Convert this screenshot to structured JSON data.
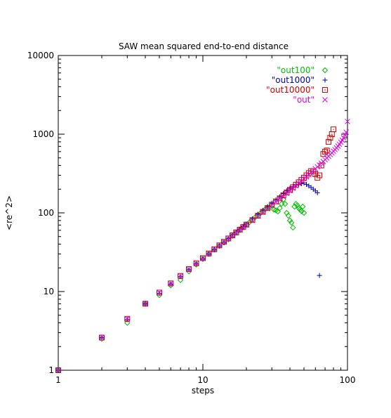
{
  "chart_data": {
    "type": "scatter",
    "title": "SAW mean squared end-to-end distance",
    "xlabel": "steps",
    "ylabel": "<re^2>",
    "x_scale": "log",
    "y_scale": "log",
    "xlim": [
      1,
      100
    ],
    "ylim": [
      1,
      10000
    ],
    "grid": false,
    "legend_position": "top-right",
    "x_ticks": [
      {
        "value": 1,
        "label": "1"
      },
      {
        "value": 10,
        "label": "10"
      },
      {
        "value": 100,
        "label": "100"
      }
    ],
    "y_ticks": [
      {
        "value": 1,
        "label": "1"
      },
      {
        "value": 10,
        "label": "10"
      },
      {
        "value": 100,
        "label": "100"
      },
      {
        "value": 1000,
        "label": "1000"
      },
      {
        "value": 10000,
        "label": "10000"
      }
    ],
    "series": [
      {
        "name": "\"out100\"",
        "color": "#00c000",
        "marker": "diamond",
        "x": [
          1,
          2,
          3,
          4,
          5,
          6,
          7,
          8,
          9,
          10,
          11,
          12,
          13,
          14,
          15,
          16,
          17,
          18,
          19,
          20,
          21,
          22,
          23,
          24,
          25,
          26,
          27,
          28,
          29,
          30,
          31,
          32,
          33,
          34,
          35,
          36,
          37,
          38,
          39,
          40,
          41,
          42,
          43,
          44,
          45,
          46,
          47,
          48,
          49,
          50
        ],
        "y": [
          1,
          2.5,
          4,
          7,
          9,
          12,
          14,
          18,
          22,
          26,
          30,
          34,
          38,
          42,
          46,
          51,
          56,
          61,
          66,
          71,
          76,
          82,
          88,
          94,
          99,
          105,
          111,
          117,
          118,
          125,
          110,
          108,
          104,
          115,
          130,
          148,
          130,
          100,
          92,
          80,
          75,
          65,
          120,
          130,
          125,
          115,
          110,
          105,
          120,
          100
        ]
      },
      {
        "name": "\"out1000\"",
        "color": "#0000b0",
        "marker": "plus",
        "x": [
          1,
          2,
          3,
          4,
          5,
          6,
          7,
          8,
          9,
          10,
          11,
          12,
          13,
          14,
          15,
          16,
          17,
          18,
          19,
          20,
          22,
          24,
          26,
          28,
          30,
          32,
          34,
          36,
          38,
          40,
          42,
          44,
          46,
          48,
          50,
          52,
          54,
          56,
          58,
          60,
          62,
          64
        ],
        "y": [
          1,
          2.6,
          4.4,
          7,
          9.5,
          12.5,
          15.5,
          19,
          22.5,
          26,
          30,
          34,
          38,
          42,
          47,
          52,
          57,
          62,
          67,
          72,
          84,
          96,
          108,
          120,
          133,
          146,
          160,
          176,
          190,
          205,
          215,
          225,
          230,
          235,
          240,
          230,
          220,
          210,
          200,
          190,
          180,
          16
        ]
      },
      {
        "name": "\"out10000\"",
        "color": "#d00000",
        "marker": "square",
        "x": [
          1,
          2,
          3,
          4,
          5,
          6,
          7,
          8,
          9,
          10,
          11,
          12,
          13,
          14,
          15,
          16,
          17,
          18,
          19,
          20,
          22,
          24,
          26,
          28,
          30,
          32,
          34,
          36,
          38,
          40,
          42,
          44,
          46,
          48,
          50,
          52,
          54,
          56,
          58,
          60,
          62,
          64,
          66,
          68,
          70,
          72,
          74,
          76,
          78,
          80
        ],
        "y": [
          1,
          2.6,
          4.5,
          7,
          9.7,
          12.7,
          15.8,
          19.3,
          22.9,
          26.6,
          30.5,
          34.5,
          38.6,
          42.9,
          47.3,
          51.8,
          56.5,
          61.2,
          66,
          71,
          81,
          92,
          103,
          115,
          127,
          140,
          153,
          167,
          182,
          196,
          212,
          228,
          245,
          262,
          280,
          300,
          320,
          340,
          340,
          310,
          280,
          300,
          400,
          560,
          600,
          620,
          800,
          900,
          1000,
          1150
        ]
      },
      {
        "name": "\"out\"",
        "color": "#e000e0",
        "marker": "cross",
        "x": [
          1,
          2,
          3,
          4,
          5,
          6,
          7,
          8,
          9,
          10,
          11,
          12,
          13,
          14,
          15,
          16,
          17,
          18,
          19,
          20,
          22,
          24,
          26,
          28,
          30,
          32,
          34,
          36,
          38,
          40,
          42,
          44,
          46,
          48,
          50,
          52,
          54,
          56,
          58,
          60,
          62,
          64,
          66,
          68,
          70,
          72,
          74,
          76,
          78,
          80,
          82,
          84,
          86,
          88,
          90,
          92,
          94,
          96,
          98,
          100
        ],
        "y": [
          1,
          2.6,
          4.5,
          7,
          9.7,
          12.6,
          15.7,
          19.1,
          22.7,
          26.4,
          30.3,
          34.2,
          38.3,
          42.5,
          46.9,
          51.4,
          56,
          60.7,
          65.5,
          70.4,
          80.5,
          91,
          102,
          113,
          125,
          137,
          150,
          163,
          177,
          191,
          206,
          221,
          237,
          253,
          270,
          287,
          305,
          324,
          343,
          363,
          384,
          405,
          427,
          450,
          474,
          498,
          523,
          550,
          578,
          607,
          637,
          670,
          705,
          745,
          790,
          840,
          900,
          980,
          1060,
          1450
        ]
      }
    ]
  }
}
